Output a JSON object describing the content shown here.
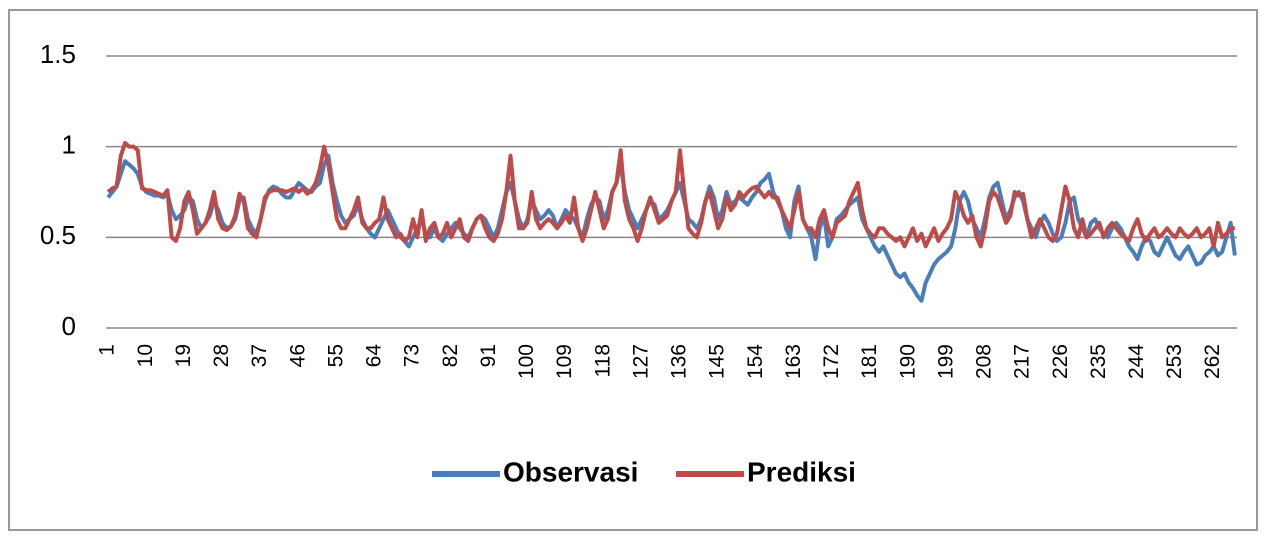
{
  "chart_data": {
    "type": "line",
    "x": [
      1,
      2,
      3,
      4,
      5,
      6,
      7,
      8,
      9,
      10,
      11,
      12,
      13,
      14,
      15,
      16,
      17,
      18,
      19,
      20,
      21,
      22,
      23,
      24,
      25,
      26,
      27,
      28,
      29,
      30,
      31,
      32,
      33,
      34,
      35,
      36,
      37,
      38,
      39,
      40,
      41,
      42,
      43,
      44,
      45,
      46,
      47,
      48,
      49,
      50,
      51,
      52,
      53,
      54,
      55,
      56,
      57,
      58,
      59,
      60,
      61,
      62,
      63,
      64,
      65,
      66,
      67,
      68,
      69,
      70,
      71,
      72,
      73,
      74,
      75,
      76,
      77,
      78,
      79,
      80,
      81,
      82,
      83,
      84,
      85,
      86,
      87,
      88,
      89,
      90,
      91,
      92,
      93,
      94,
      95,
      96,
      97,
      98,
      99,
      100,
      101,
      102,
      103,
      104,
      105,
      106,
      107,
      108,
      109,
      110,
      111,
      112,
      113,
      114,
      115,
      116,
      117,
      118,
      119,
      120,
      121,
      122,
      123,
      124,
      125,
      126,
      127,
      128,
      129,
      130,
      131,
      132,
      133,
      134,
      135,
      136,
      137,
      138,
      139,
      140,
      141,
      142,
      143,
      144,
      145,
      146,
      147,
      148,
      149,
      150,
      151,
      152,
      153,
      154,
      155,
      156,
      157,
      158,
      159,
      160,
      161,
      162,
      163,
      164,
      165,
      166,
      167,
      168,
      169,
      170,
      171,
      172,
      173,
      174,
      175,
      176,
      177,
      178,
      179,
      180,
      181,
      182,
      183,
      184,
      185,
      186,
      187,
      188,
      189,
      190,
      191,
      192,
      193,
      194,
      195,
      196,
      197,
      198,
      199,
      200,
      201,
      202,
      203,
      204,
      205,
      206,
      207,
      208,
      209,
      210,
      211,
      212,
      213,
      214,
      215,
      216,
      217,
      218,
      219,
      220,
      221,
      222,
      223,
      224,
      225,
      226,
      227,
      228,
      229,
      230,
      231,
      232,
      233,
      234,
      235,
      236,
      237,
      238,
      239,
      240,
      241,
      242,
      243,
      244,
      245,
      246,
      247,
      248,
      249,
      250,
      251,
      252,
      253,
      254,
      255,
      256,
      257,
      258,
      259,
      260,
      261,
      262,
      263,
      264,
      265,
      266,
      267
    ],
    "xlim": [
      0.5,
      267.5
    ],
    "xticks": [
      1,
      10,
      19,
      28,
      37,
      46,
      55,
      64,
      73,
      82,
      91,
      100,
      109,
      118,
      127,
      136,
      145,
      154,
      163,
      172,
      181,
      190,
      199,
      208,
      217,
      226,
      235,
      244,
      253,
      262
    ],
    "ylim": [
      0,
      1.5
    ],
    "yticks": [
      0,
      0.5,
      1,
      1.5
    ],
    "grid": true,
    "legend": "bottom",
    "series": [
      {
        "name": "Observasi",
        "color": "#4a7ebb",
        "values": [
          0.72,
          0.75,
          0.78,
          0.85,
          0.92,
          0.9,
          0.88,
          0.85,
          0.78,
          0.75,
          0.74,
          0.73,
          0.73,
          0.72,
          0.74,
          0.65,
          0.6,
          0.62,
          0.65,
          0.72,
          0.7,
          0.6,
          0.55,
          0.58,
          0.62,
          0.7,
          0.65,
          0.58,
          0.55,
          0.56,
          0.6,
          0.7,
          0.72,
          0.6,
          0.55,
          0.52,
          0.6,
          0.7,
          0.76,
          0.78,
          0.77,
          0.74,
          0.72,
          0.72,
          0.76,
          0.8,
          0.78,
          0.76,
          0.75,
          0.78,
          0.8,
          0.9,
          0.95,
          0.8,
          0.7,
          0.62,
          0.58,
          0.6,
          0.62,
          0.68,
          0.6,
          0.55,
          0.52,
          0.5,
          0.55,
          0.6,
          0.65,
          0.6,
          0.55,
          0.5,
          0.48,
          0.45,
          0.5,
          0.55,
          0.6,
          0.52,
          0.5,
          0.55,
          0.5,
          0.48,
          0.52,
          0.55,
          0.58,
          0.55,
          0.52,
          0.5,
          0.55,
          0.6,
          0.62,
          0.6,
          0.55,
          0.5,
          0.55,
          0.65,
          0.75,
          0.8,
          0.7,
          0.6,
          0.55,
          0.6,
          0.7,
          0.65,
          0.6,
          0.62,
          0.65,
          0.62,
          0.55,
          0.6,
          0.65,
          0.62,
          0.6,
          0.55,
          0.5,
          0.6,
          0.68,
          0.72,
          0.7,
          0.6,
          0.65,
          0.75,
          0.8,
          0.9,
          0.75,
          0.65,
          0.6,
          0.55,
          0.6,
          0.65,
          0.7,
          0.68,
          0.6,
          0.62,
          0.65,
          0.7,
          0.75,
          0.8,
          0.7,
          0.6,
          0.58,
          0.55,
          0.6,
          0.7,
          0.78,
          0.72,
          0.6,
          0.65,
          0.75,
          0.68,
          0.7,
          0.72,
          0.7,
          0.68,
          0.72,
          0.75,
          0.8,
          0.82,
          0.85,
          0.75,
          0.7,
          0.65,
          0.55,
          0.5,
          0.7,
          0.78,
          0.6,
          0.55,
          0.5,
          0.38,
          0.55,
          0.62,
          0.45,
          0.5,
          0.6,
          0.62,
          0.65,
          0.68,
          0.7,
          0.72,
          0.6,
          0.55,
          0.5,
          0.45,
          0.42,
          0.45,
          0.4,
          0.35,
          0.3,
          0.28,
          0.3,
          0.25,
          0.22,
          0.18,
          0.15,
          0.25,
          0.3,
          0.35,
          0.38,
          0.4,
          0.42,
          0.45,
          0.55,
          0.7,
          0.75,
          0.7,
          0.6,
          0.55,
          0.5,
          0.6,
          0.72,
          0.78,
          0.8,
          0.7,
          0.6,
          0.65,
          0.72,
          0.75,
          0.7,
          0.6,
          0.55,
          0.5,
          0.58,
          0.62,
          0.58,
          0.52,
          0.48,
          0.5,
          0.58,
          0.7,
          0.72,
          0.6,
          0.55,
          0.5,
          0.58,
          0.6,
          0.55,
          0.52,
          0.5,
          0.55,
          0.58,
          0.55,
          0.5,
          0.45,
          0.42,
          0.38,
          0.45,
          0.5,
          0.48,
          0.42,
          0.4,
          0.45,
          0.5,
          0.45,
          0.4,
          0.38,
          0.42,
          0.45,
          0.4,
          0.35,
          0.36,
          0.4,
          0.42,
          0.45,
          0.4,
          0.42,
          0.5,
          0.58,
          0.4
        ]
      },
      {
        "name": "Prediksi",
        "color": "#be4b48",
        "values": [
          0.75,
          0.77,
          0.78,
          0.95,
          1.02,
          1.0,
          1.0,
          0.98,
          0.77,
          0.76,
          0.76,
          0.75,
          0.74,
          0.73,
          0.76,
          0.5,
          0.48,
          0.55,
          0.7,
          0.75,
          0.65,
          0.52,
          0.55,
          0.58,
          0.65,
          0.75,
          0.6,
          0.55,
          0.54,
          0.56,
          0.62,
          0.74,
          0.7,
          0.55,
          0.52,
          0.5,
          0.6,
          0.72,
          0.75,
          0.76,
          0.76,
          0.76,
          0.75,
          0.76,
          0.77,
          0.75,
          0.77,
          0.74,
          0.76,
          0.8,
          0.88,
          1.0,
          0.9,
          0.75,
          0.6,
          0.55,
          0.55,
          0.6,
          0.65,
          0.72,
          0.58,
          0.55,
          0.55,
          0.58,
          0.6,
          0.72,
          0.6,
          0.55,
          0.5,
          0.52,
          0.48,
          0.5,
          0.6,
          0.5,
          0.65,
          0.48,
          0.55,
          0.58,
          0.5,
          0.52,
          0.58,
          0.5,
          0.55,
          0.6,
          0.5,
          0.48,
          0.55,
          0.6,
          0.62,
          0.55,
          0.5,
          0.48,
          0.52,
          0.6,
          0.75,
          0.95,
          0.7,
          0.55,
          0.55,
          0.58,
          0.75,
          0.6,
          0.55,
          0.58,
          0.6,
          0.58,
          0.55,
          0.58,
          0.62,
          0.58,
          0.72,
          0.55,
          0.48,
          0.55,
          0.65,
          0.75,
          0.65,
          0.55,
          0.6,
          0.75,
          0.8,
          0.98,
          0.7,
          0.6,
          0.55,
          0.48,
          0.55,
          0.65,
          0.72,
          0.65,
          0.58,
          0.6,
          0.62,
          0.7,
          0.75,
          0.98,
          0.75,
          0.55,
          0.52,
          0.5,
          0.58,
          0.7,
          0.75,
          0.65,
          0.55,
          0.6,
          0.72,
          0.65,
          0.68,
          0.75,
          0.72,
          0.75,
          0.77,
          0.78,
          0.75,
          0.72,
          0.75,
          0.72,
          0.72,
          0.65,
          0.6,
          0.55,
          0.65,
          0.75,
          0.6,
          0.55,
          0.55,
          0.5,
          0.6,
          0.65,
          0.55,
          0.5,
          0.58,
          0.6,
          0.62,
          0.7,
          0.75,
          0.8,
          0.65,
          0.55,
          0.52,
          0.5,
          0.55,
          0.55,
          0.52,
          0.5,
          0.48,
          0.5,
          0.45,
          0.5,
          0.55,
          0.48,
          0.52,
          0.45,
          0.5,
          0.55,
          0.48,
          0.52,
          0.55,
          0.6,
          0.75,
          0.7,
          0.62,
          0.58,
          0.62,
          0.5,
          0.45,
          0.55,
          0.7,
          0.75,
          0.72,
          0.65,
          0.58,
          0.62,
          0.75,
          0.73,
          0.74,
          0.6,
          0.5,
          0.55,
          0.6,
          0.55,
          0.5,
          0.48,
          0.52,
          0.65,
          0.78,
          0.7,
          0.55,
          0.5,
          0.6,
          0.5,
          0.52,
          0.55,
          0.58,
          0.5,
          0.55,
          0.58,
          0.55,
          0.52,
          0.5,
          0.48,
          0.55,
          0.6,
          0.52,
          0.48,
          0.52,
          0.55,
          0.5,
          0.52,
          0.55,
          0.52,
          0.5,
          0.55,
          0.52,
          0.5,
          0.52,
          0.55,
          0.5,
          0.52,
          0.55,
          0.45,
          0.58,
          0.5,
          0.52,
          0.55,
          0.55
        ]
      }
    ]
  }
}
